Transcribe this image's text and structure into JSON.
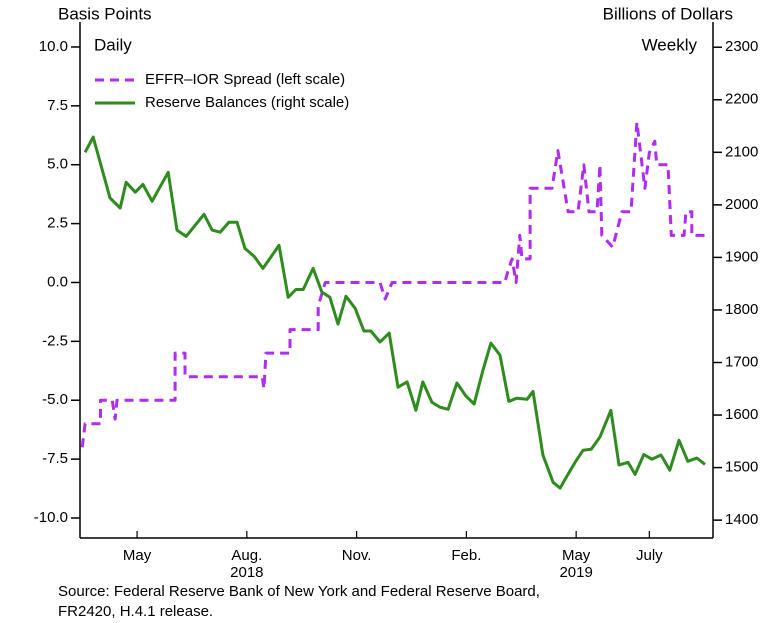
{
  "chart_data": {
    "type": "line",
    "left_axis_label": "Basis Points",
    "right_axis_label": "Billions of Dollars",
    "left_note": "Daily",
    "right_note": "Weekly",
    "source": [
      "Source: Federal Reserve Bank of New York and Federal Reserve Board,",
      "FR2420, H.4.1 release."
    ],
    "xlim": [
      2.44,
      19.74
    ],
    "xticks": [
      {
        "value": 4,
        "label": "May"
      },
      {
        "value": 7,
        "label": "Aug."
      },
      {
        "value": 10,
        "label": "Nov."
      },
      {
        "value": 13,
        "label": "Feb."
      },
      {
        "value": 16,
        "label": "May"
      },
      {
        "value": 18,
        "label": "July"
      }
    ],
    "xtick_years": [
      {
        "value": 7,
        "label": "2018"
      },
      {
        "value": 16,
        "label": "2019"
      }
    ],
    "ylim": [
      -10.85,
      11.06
    ],
    "yticks": [
      {
        "value": -10,
        "label": "-10.0"
      },
      {
        "value": -7.5,
        "label": "-7.5"
      },
      {
        "value": -5,
        "label": "-5.0"
      },
      {
        "value": -2.5,
        "label": "-2.5"
      },
      {
        "value": 0,
        "label": "0.0"
      },
      {
        "value": 2.5,
        "label": "2.5"
      },
      {
        "value": 5,
        "label": "5.0"
      },
      {
        "value": 7.5,
        "label": "7.5"
      },
      {
        "value": 10,
        "label": "10.0"
      }
    ],
    "y2lim": [
      1366,
      2348
    ],
    "y2ticks": [
      1400,
      1500,
      1600,
      1700,
      1800,
      1900,
      2000,
      2100,
      2200,
      2300
    ],
    "series": [
      {
        "name": "EFFR–IOR Spread (left scale)",
        "color": "#b12cf0",
        "dashed": true,
        "axis": "y",
        "x": [
          2.5,
          2.58,
          3.0,
          3.0,
          3.32,
          3.4,
          3.45,
          5.04,
          5.04,
          5.31,
          5.31,
          7.42,
          7.47,
          7.52,
          8.18,
          8.18,
          8.95,
          8.95,
          9.14,
          10.64,
          10.78,
          10.97,
          14.05,
          14.14,
          14.25,
          14.36,
          14.46,
          14.52,
          14.74,
          14.74,
          15.34,
          15.5,
          15.78,
          16.05,
          16.21,
          16.35,
          16.57,
          16.65,
          16.7,
          17.0,
          17.25,
          17.5,
          17.66,
          17.88,
          18.0,
          18.15,
          18.2,
          18.51,
          18.6,
          18.95,
          19.0,
          19.16,
          19.16,
          19.52
        ],
        "values": [
          -7,
          -6,
          -6,
          -5,
          -5,
          -5.8,
          -5,
          -5,
          -3,
          -3,
          -4,
          -4,
          -4.5,
          -3,
          -3,
          -2,
          -2,
          -1,
          0,
          0,
          -0.7,
          0,
          0,
          0.5,
          1,
          0,
          2,
          1,
          1,
          4,
          4,
          5.6,
          3,
          3,
          5,
          3,
          3,
          5,
          2,
          1.5,
          3,
          3,
          6.8,
          4,
          5.5,
          6,
          5,
          5,
          2,
          2,
          3,
          3,
          2,
          2
        ]
      },
      {
        "name": "Reserve Balances (right scale)",
        "color": "#2e8b1e",
        "dashed": false,
        "axis": "y2",
        "x": [
          2.58,
          2.8,
          3.26,
          3.54,
          3.7,
          3.95,
          4.16,
          4.41,
          4.85,
          5.09,
          5.34,
          5.83,
          6.05,
          6.27,
          6.51,
          6.73,
          6.95,
          7.2,
          7.44,
          7.63,
          7.88,
          8.13,
          8.34,
          8.54,
          8.81,
          9.05,
          9.27,
          9.49,
          9.71,
          9.96,
          10.2,
          10.39,
          10.64,
          10.89,
          11.13,
          11.38,
          11.62,
          11.81,
          12.06,
          12.28,
          12.5,
          12.74,
          12.99,
          13.21,
          13.45,
          13.67,
          13.92,
          14.16,
          14.38,
          14.66,
          14.82,
          15.09,
          15.37,
          15.56,
          15.75,
          15.97,
          16.19,
          16.41,
          16.65,
          16.95,
          17.17,
          17.42,
          17.61,
          17.85,
          18.07,
          18.32,
          18.56,
          18.81,
          19.05,
          19.3,
          19.52
        ],
        "values": [
          2100,
          2129,
          2013,
          1994,
          2043,
          2024,
          2039,
          2007,
          2062,
          1952,
          1940,
          1982,
          1952,
          1948,
          1967,
          1967,
          1917,
          1902,
          1879,
          1898,
          1923,
          1824,
          1839,
          1839,
          1879,
          1834,
          1824,
          1773,
          1826,
          1803,
          1760,
          1760,
          1739,
          1756,
          1653,
          1663,
          1609,
          1663,
          1624,
          1615,
          1611,
          1661,
          1636,
          1621,
          1685,
          1737,
          1714,
          1626,
          1632,
          1630,
          1645,
          1524,
          1472,
          1461,
          1484,
          1510,
          1533,
          1535,
          1558,
          1609,
          1505,
          1510,
          1487,
          1525,
          1516,
          1524,
          1495,
          1552,
          1512,
          1518,
          1506
        ]
      }
    ]
  }
}
